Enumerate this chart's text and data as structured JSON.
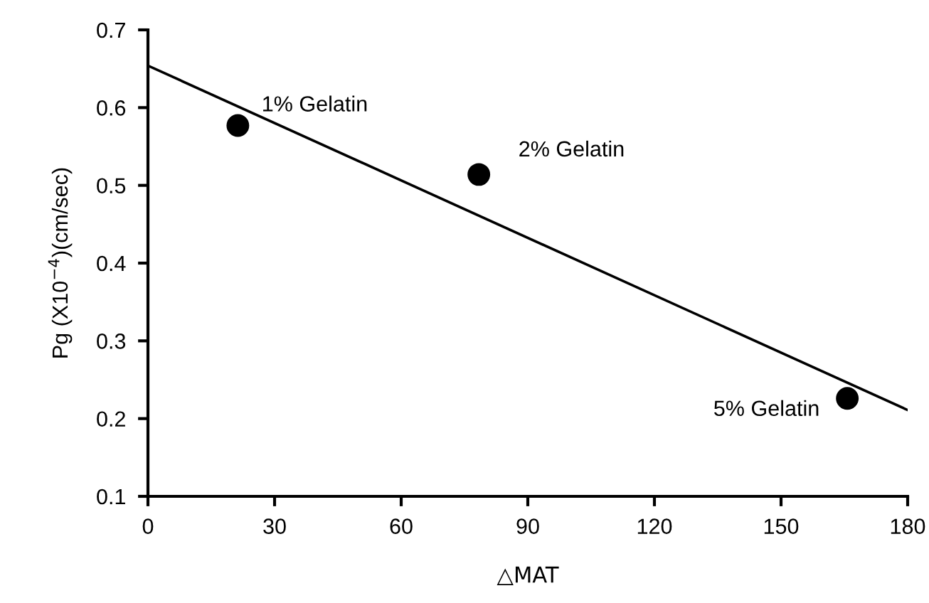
{
  "chart_data": {
    "type": "scatter",
    "xlabel": "△MAT",
    "ylabel": "Pg (X10$^{−4}$)(cm/sec)",
    "x": [
      21.3,
      78.4,
      165.7
    ],
    "series": [
      {
        "color": "#000000",
        "values": [
          0.577,
          0.514,
          0.226
        ],
        "marker": "circle"
      },
      {
        "type": "line",
        "color": "#000000",
        "x": [
          0,
          180
        ],
        "values": [
          0.654,
          0.211
        ],
        "marker": "none",
        "line_style": "solid"
      }
    ],
    "annotations": [
      {
        "text": "1% Gelatin",
        "x": 21.3,
        "y": 0.577
      },
      {
        "text": "2% Gelatin",
        "x": 78.4,
        "y": 0.514
      },
      {
        "text": "5% Gelatin",
        "x": 165.7,
        "y": 0.226
      }
    ],
    "xlim": [
      0,
      180
    ],
    "ylim": [
      0.1,
      0.7
    ],
    "xticks": [
      0,
      30,
      60,
      90,
      120,
      150,
      180
    ],
    "yticks": [
      0.1,
      0.2,
      0.3,
      0.4,
      0.5,
      0.6,
      0.7
    ],
    "grid": false,
    "legend": false
  }
}
